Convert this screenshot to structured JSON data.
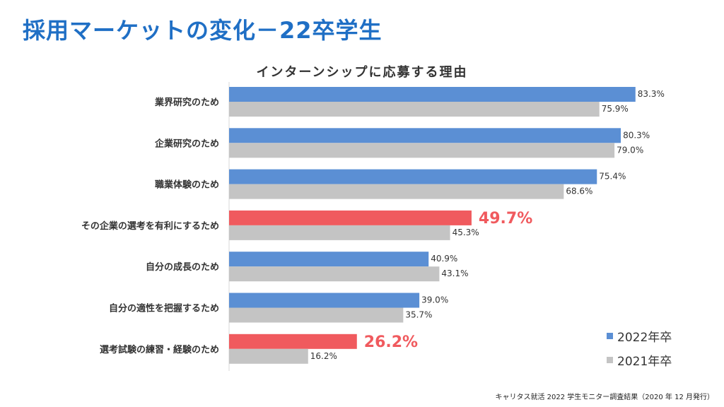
{
  "page": {
    "title": "採用マーケットの変化－22卒学生",
    "source": "キャリタス就活 2022 学生モニター調査結果（2020 年 12 月発行）"
  },
  "colors": {
    "series_2022": "#5b8fd4",
    "series_2021": "#c4c4c4",
    "highlight": "#f05a5e",
    "title": "#1f6fc5"
  },
  "chart_data": {
    "type": "bar",
    "orientation": "horizontal",
    "title": "インターンシップに応募する理由",
    "categories": [
      "業界研究のため",
      "企業研究のため",
      "職業体験のため",
      "その企業の選考を有利にするため",
      "自分の成長のため",
      "自分の適性を把握するため",
      "選考試験の練習・経験のため"
    ],
    "series": [
      {
        "name": "2022年卒",
        "values": [
          83.3,
          80.3,
          75.4,
          49.7,
          40.9,
          39.0,
          26.2
        ],
        "labels": [
          "83.3%",
          "80.3%",
          "75.4%",
          "49.7%",
          "40.9%",
          "39.0%",
          "26.2%"
        ]
      },
      {
        "name": "2021年卒",
        "values": [
          75.9,
          79.0,
          68.6,
          45.3,
          43.1,
          35.7,
          16.2
        ],
        "labels": [
          "75.9%",
          "79.0%",
          "68.6%",
          "45.3%",
          "43.1%",
          "35.7%",
          "16.2%"
        ]
      }
    ],
    "highlighted_categories": [
      3,
      6
    ],
    "xlim": [
      0,
      100
    ],
    "grid": false,
    "legend_position": "bottom-right"
  }
}
